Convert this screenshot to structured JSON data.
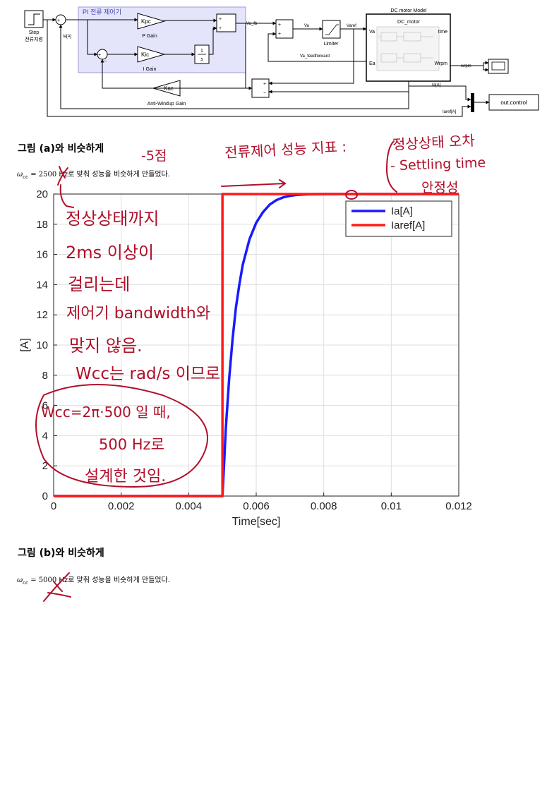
{
  "diagram": {
    "step_label": "Step",
    "step_sublabel": "전류지령",
    "ia_label": "Ia[A]",
    "pi_title": "PI 전류 제어기",
    "kpc_label": "Kpc",
    "p_gain_label": "P Gain",
    "kic_label": "Kic",
    "i_gain_label": "I Gain",
    "integrator_num": "1",
    "integrator_den": "s",
    "kac_label": "Kac",
    "anti_windup_label": "Anti-Windup Gain",
    "va_fb_label": "Va_fb",
    "va_label": "Va",
    "varef_label": "Varef",
    "limiter_label": "Limiter",
    "va_feedforward_label": "Va_feedforward",
    "dc_model_title": "DC motor Model",
    "dc_motor_label": "DC_motor",
    "port_va": "Va",
    "port_time": "time",
    "port_ea": "Ea",
    "port_wrpm": "Wrpm",
    "wrpm_label": "wrpm",
    "ia_out_label": "Ia[A]",
    "iaref_out_label": "Iaref[A]",
    "out_control_label": "out.control",
    "plus": "+",
    "minus": "−"
  },
  "section_a": {
    "heading": "그림 (a)와 비슷하게",
    "omega_symbol": "ω",
    "omega_sub": "cc",
    "equals": "= 2500",
    "text": " Hz로 맞춰 성능을 비슷하게 만들었다."
  },
  "section_b": {
    "heading": "그림 (b)와 비슷하게",
    "omega_symbol": "ω",
    "omega_sub": "cc",
    "equals": "= 5000",
    "text": " Hz로 맞춰 성능을 비슷하게 만들었다."
  },
  "annotations": {
    "minus5": "-5점",
    "perf_title": "전류제어 성능 지표 :",
    "perf_1": "정상상태 오차",
    "perf_2": "- Settling time",
    "perf_3": "안정성",
    "note_1": "정상상태까지",
    "note_2": "2ms 이상이",
    "note_3": "걸리는데",
    "note_4": "제어기 bandwidth와",
    "note_5": "맞지 않음.",
    "note_6": "Wcc는 rad/s 이므로",
    "note_7": "Wcc=2π·500 일 때,",
    "note_8": "500 Hz로",
    "note_9": "설계한 것임.",
    "ink_color": "#b0102a"
  },
  "chart_data": {
    "type": "line",
    "xlabel": "Time[sec]",
    "ylabel": "[A]",
    "xlim": [
      0,
      0.012
    ],
    "ylim": [
      0,
      20
    ],
    "x_ticks": [
      0,
      0.002,
      0.004,
      0.006,
      0.008,
      0.01,
      0.012
    ],
    "x_tick_labels": [
      "0",
      "0.002",
      "0.004",
      "0.006",
      "0.008",
      "0.01",
      "0.012"
    ],
    "y_ticks": [
      0,
      2,
      4,
      6,
      8,
      10,
      12,
      14,
      16,
      18,
      20
    ],
    "grid": true,
    "legend_position": "top-right",
    "series": [
      {
        "name": "Ia[A]",
        "color": "#1a1aff",
        "x": [
          0,
          0.005,
          0.00505,
          0.0051,
          0.0052,
          0.0053,
          0.0054,
          0.0055,
          0.0056,
          0.0058,
          0.006,
          0.0062,
          0.0064,
          0.0066,
          0.0068,
          0.007,
          0.0072,
          0.0075,
          0.008,
          0.009,
          0.01,
          0.012
        ],
        "y": [
          0,
          0,
          2.2,
          4.5,
          7.8,
          10.4,
          12.5,
          14.0,
          15.3,
          17.0,
          18.1,
          18.8,
          19.3,
          19.6,
          19.78,
          19.88,
          19.94,
          19.98,
          20,
          20,
          20,
          20
        ]
      },
      {
        "name": "Iaref[A]",
        "color": "#ff1a1a",
        "x": [
          0,
          0.005,
          0.005,
          0.012
        ],
        "y": [
          0,
          0,
          20,
          20
        ]
      }
    ]
  }
}
